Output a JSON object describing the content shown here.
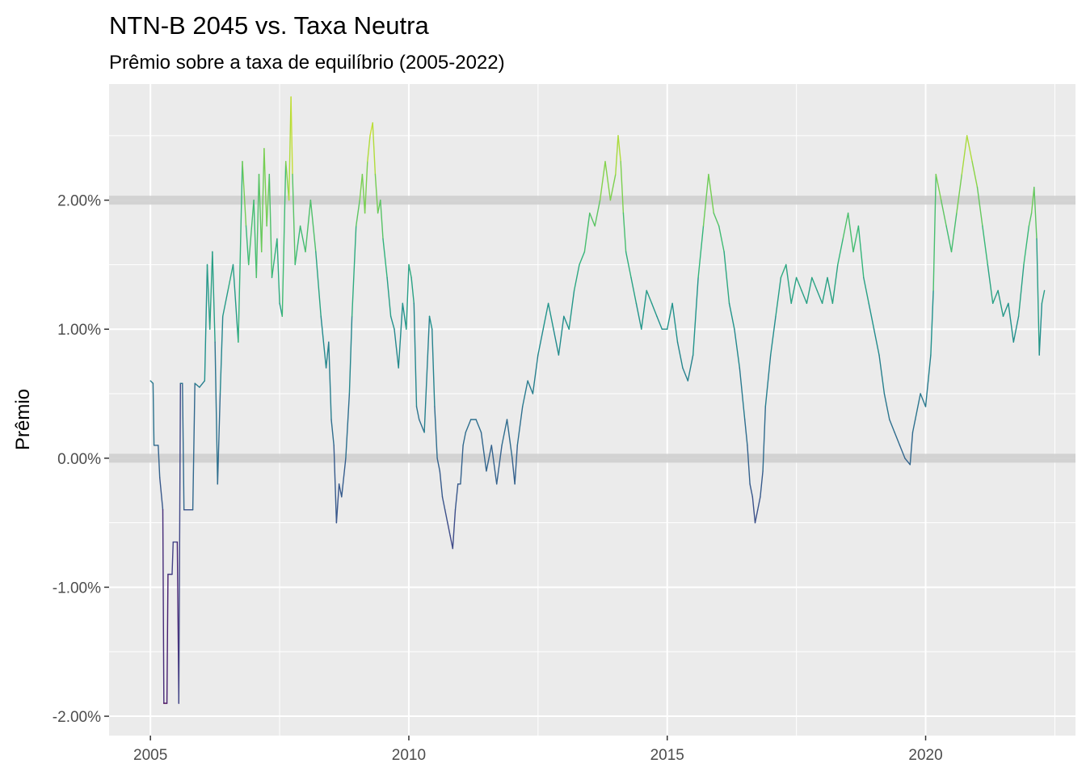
{
  "chart_data": {
    "type": "line",
    "title": "NTN-B 2045 vs. Taxa Neutra",
    "subtitle": "Prêmio sobre a taxa de equilíbrio (2005-2022)",
    "xlabel": "",
    "ylabel": "Prêmio",
    "xlim": [
      2004.2,
      2022.9
    ],
    "ylim": [
      -2.15,
      2.9
    ],
    "x_ticks": [
      2005,
      2010,
      2015,
      2020
    ],
    "x_tick_labels": [
      "2005",
      "2010",
      "2015",
      "2020"
    ],
    "y_ticks": [
      -2,
      -1,
      0,
      1,
      2
    ],
    "y_tick_labels": [
      "-2.00%",
      "-1.00%",
      "0.00%",
      "1.00%",
      "2.00%"
    ],
    "reference_lines": [
      0,
      2
    ],
    "grid": true,
    "color_scale": "viridis",
    "series": [
      {
        "points": [
          [
            2005.0,
            0.6
          ],
          [
            2005.05,
            0.58
          ],
          [
            2005.07,
            0.1
          ],
          [
            2005.15,
            0.1
          ],
          [
            2005.18,
            -0.15
          ],
          [
            2005.24,
            -0.4
          ],
          [
            2005.26,
            -1.9
          ],
          [
            2005.32,
            -1.9
          ],
          [
            2005.34,
            -0.9
          ],
          [
            2005.42,
            -0.9
          ],
          [
            2005.44,
            -0.65
          ],
          [
            2005.52,
            -0.65
          ],
          [
            2005.55,
            -1.9
          ],
          [
            2005.58,
            0.58
          ],
          [
            2005.62,
            0.58
          ],
          [
            2005.65,
            -0.4
          ],
          [
            2005.82,
            -0.4
          ],
          [
            2005.86,
            0.58
          ],
          [
            2005.95,
            0.55
          ],
          [
            2006.05,
            0.6
          ],
          [
            2006.1,
            1.5
          ],
          [
            2006.15,
            1.0
          ],
          [
            2006.2,
            1.6
          ],
          [
            2006.25,
            0.9
          ],
          [
            2006.3,
            -0.2
          ],
          [
            2006.35,
            0.5
          ],
          [
            2006.4,
            1.1
          ],
          [
            2006.5,
            1.3
          ],
          [
            2006.6,
            1.5
          ],
          [
            2006.7,
            0.9
          ],
          [
            2006.78,
            2.3
          ],
          [
            2006.85,
            1.8
          ],
          [
            2006.9,
            1.5
          ],
          [
            2007.0,
            2.0
          ],
          [
            2007.05,
            1.4
          ],
          [
            2007.1,
            2.2
          ],
          [
            2007.15,
            1.6
          ],
          [
            2007.2,
            2.4
          ],
          [
            2007.25,
            1.8
          ],
          [
            2007.3,
            2.2
          ],
          [
            2007.35,
            1.4
          ],
          [
            2007.45,
            1.7
          ],
          [
            2007.5,
            1.2
          ],
          [
            2007.55,
            1.1
          ],
          [
            2007.62,
            2.3
          ],
          [
            2007.68,
            2.0
          ],
          [
            2007.72,
            2.8
          ],
          [
            2007.75,
            2.2
          ],
          [
            2007.8,
            1.5
          ],
          [
            2007.9,
            1.8
          ],
          [
            2008.0,
            1.6
          ],
          [
            2008.1,
            2.0
          ],
          [
            2008.2,
            1.6
          ],
          [
            2008.3,
            1.1
          ],
          [
            2008.4,
            0.7
          ],
          [
            2008.45,
            0.9
          ],
          [
            2008.5,
            0.3
          ],
          [
            2008.55,
            0.1
          ],
          [
            2008.6,
            -0.5
          ],
          [
            2008.65,
            -0.2
          ],
          [
            2008.7,
            -0.3
          ],
          [
            2008.78,
            0.0
          ],
          [
            2008.85,
            0.5
          ],
          [
            2008.9,
            1.1
          ],
          [
            2008.98,
            1.8
          ],
          [
            2009.05,
            2.0
          ],
          [
            2009.1,
            2.2
          ],
          [
            2009.15,
            1.9
          ],
          [
            2009.2,
            2.3
          ],
          [
            2009.25,
            2.5
          ],
          [
            2009.3,
            2.6
          ],
          [
            2009.35,
            2.2
          ],
          [
            2009.4,
            1.9
          ],
          [
            2009.45,
            2.0
          ],
          [
            2009.5,
            1.7
          ],
          [
            2009.58,
            1.4
          ],
          [
            2009.65,
            1.1
          ],
          [
            2009.72,
            1.0
          ],
          [
            2009.8,
            0.7
          ],
          [
            2009.88,
            1.2
          ],
          [
            2009.95,
            1.0
          ],
          [
            2010.0,
            1.5
          ],
          [
            2010.05,
            1.4
          ],
          [
            2010.1,
            1.2
          ],
          [
            2010.15,
            0.4
          ],
          [
            2010.2,
            0.3
          ],
          [
            2010.3,
            0.2
          ],
          [
            2010.4,
            1.1
          ],
          [
            2010.45,
            1.0
          ],
          [
            2010.5,
            0.4
          ],
          [
            2010.55,
            0.0
          ],
          [
            2010.6,
            -0.1
          ],
          [
            2010.65,
            -0.3
          ],
          [
            2010.7,
            -0.4
          ],
          [
            2010.75,
            -0.5
          ],
          [
            2010.8,
            -0.6
          ],
          [
            2010.85,
            -0.7
          ],
          [
            2010.9,
            -0.4
          ],
          [
            2010.95,
            -0.2
          ],
          [
            2011.0,
            -0.2
          ],
          [
            2011.05,
            0.1
          ],
          [
            2011.1,
            0.2
          ],
          [
            2011.2,
            0.3
          ],
          [
            2011.3,
            0.3
          ],
          [
            2011.4,
            0.2
          ],
          [
            2011.5,
            -0.1
          ],
          [
            2011.6,
            0.1
          ],
          [
            2011.7,
            -0.2
          ],
          [
            2011.8,
            0.1
          ],
          [
            2011.9,
            0.3
          ],
          [
            2012.0,
            0.0
          ],
          [
            2012.05,
            -0.2
          ],
          [
            2012.1,
            0.1
          ],
          [
            2012.2,
            0.4
          ],
          [
            2012.3,
            0.6
          ],
          [
            2012.4,
            0.5
          ],
          [
            2012.5,
            0.8
          ],
          [
            2012.6,
            1.0
          ],
          [
            2012.7,
            1.2
          ],
          [
            2012.8,
            1.0
          ],
          [
            2012.9,
            0.8
          ],
          [
            2013.0,
            1.1
          ],
          [
            2013.1,
            1.0
          ],
          [
            2013.2,
            1.3
          ],
          [
            2013.3,
            1.5
          ],
          [
            2013.4,
            1.6
          ],
          [
            2013.5,
            1.9
          ],
          [
            2013.6,
            1.8
          ],
          [
            2013.7,
            2.0
          ],
          [
            2013.8,
            2.3
          ],
          [
            2013.9,
            2.0
          ],
          [
            2014.0,
            2.2
          ],
          [
            2014.05,
            2.5
          ],
          [
            2014.1,
            2.3
          ],
          [
            2014.15,
            1.9
          ],
          [
            2014.2,
            1.6
          ],
          [
            2014.3,
            1.4
          ],
          [
            2014.4,
            1.2
          ],
          [
            2014.5,
            1.0
          ],
          [
            2014.6,
            1.3
          ],
          [
            2014.7,
            1.2
          ],
          [
            2014.8,
            1.1
          ],
          [
            2014.9,
            1.0
          ],
          [
            2015.0,
            1.0
          ],
          [
            2015.1,
            1.2
          ],
          [
            2015.2,
            0.9
          ],
          [
            2015.3,
            0.7
          ],
          [
            2015.4,
            0.6
          ],
          [
            2015.5,
            0.8
          ],
          [
            2015.6,
            1.4
          ],
          [
            2015.7,
            1.8
          ],
          [
            2015.8,
            2.2
          ],
          [
            2015.9,
            1.9
          ],
          [
            2016.0,
            1.8
          ],
          [
            2016.1,
            1.6
          ],
          [
            2016.2,
            1.2
          ],
          [
            2016.3,
            1.0
          ],
          [
            2016.4,
            0.7
          ],
          [
            2016.5,
            0.3
          ],
          [
            2016.55,
            0.1
          ],
          [
            2016.6,
            -0.2
          ],
          [
            2016.65,
            -0.3
          ],
          [
            2016.7,
            -0.5
          ],
          [
            2016.75,
            -0.4
          ],
          [
            2016.8,
            -0.3
          ],
          [
            2016.85,
            -0.1
          ],
          [
            2016.9,
            0.4
          ],
          [
            2017.0,
            0.8
          ],
          [
            2017.1,
            1.1
          ],
          [
            2017.2,
            1.4
          ],
          [
            2017.3,
            1.5
          ],
          [
            2017.4,
            1.2
          ],
          [
            2017.5,
            1.4
          ],
          [
            2017.6,
            1.3
          ],
          [
            2017.7,
            1.2
          ],
          [
            2017.8,
            1.4
          ],
          [
            2017.9,
            1.3
          ],
          [
            2018.0,
            1.2
          ],
          [
            2018.1,
            1.4
          ],
          [
            2018.2,
            1.2
          ],
          [
            2018.3,
            1.5
          ],
          [
            2018.4,
            1.7
          ],
          [
            2018.5,
            1.9
          ],
          [
            2018.6,
            1.6
          ],
          [
            2018.7,
            1.8
          ],
          [
            2018.8,
            1.4
          ],
          [
            2018.9,
            1.2
          ],
          [
            2019.0,
            1.0
          ],
          [
            2019.1,
            0.8
          ],
          [
            2019.2,
            0.5
          ],
          [
            2019.3,
            0.3
          ],
          [
            2019.4,
            0.2
          ],
          [
            2019.5,
            0.1
          ],
          [
            2019.6,
            0.0
          ],
          [
            2019.7,
            -0.05
          ],
          [
            2019.75,
            0.2
          ],
          [
            2019.8,
            0.3
          ],
          [
            2019.9,
            0.5
          ],
          [
            2020.0,
            0.4
          ],
          [
            2020.05,
            0.6
          ],
          [
            2020.1,
            0.8
          ],
          [
            2020.15,
            1.3
          ],
          [
            2020.2,
            2.2
          ],
          [
            2020.3,
            2.0
          ],
          [
            2020.4,
            1.8
          ],
          [
            2020.5,
            1.6
          ],
          [
            2020.6,
            1.9
          ],
          [
            2020.7,
            2.2
          ],
          [
            2020.8,
            2.5
          ],
          [
            2020.9,
            2.3
          ],
          [
            2021.0,
            2.1
          ],
          [
            2021.1,
            1.8
          ],
          [
            2021.2,
            1.5
          ],
          [
            2021.3,
            1.2
          ],
          [
            2021.4,
            1.3
          ],
          [
            2021.5,
            1.1
          ],
          [
            2021.6,
            1.2
          ],
          [
            2021.7,
            0.9
          ],
          [
            2021.8,
            1.1
          ],
          [
            2021.9,
            1.5
          ],
          [
            2022.0,
            1.8
          ],
          [
            2022.05,
            1.9
          ],
          [
            2022.1,
            2.1
          ],
          [
            2022.15,
            1.7
          ],
          [
            2022.2,
            0.8
          ],
          [
            2022.25,
            1.2
          ],
          [
            2022.3,
            1.3
          ]
        ]
      }
    ]
  }
}
